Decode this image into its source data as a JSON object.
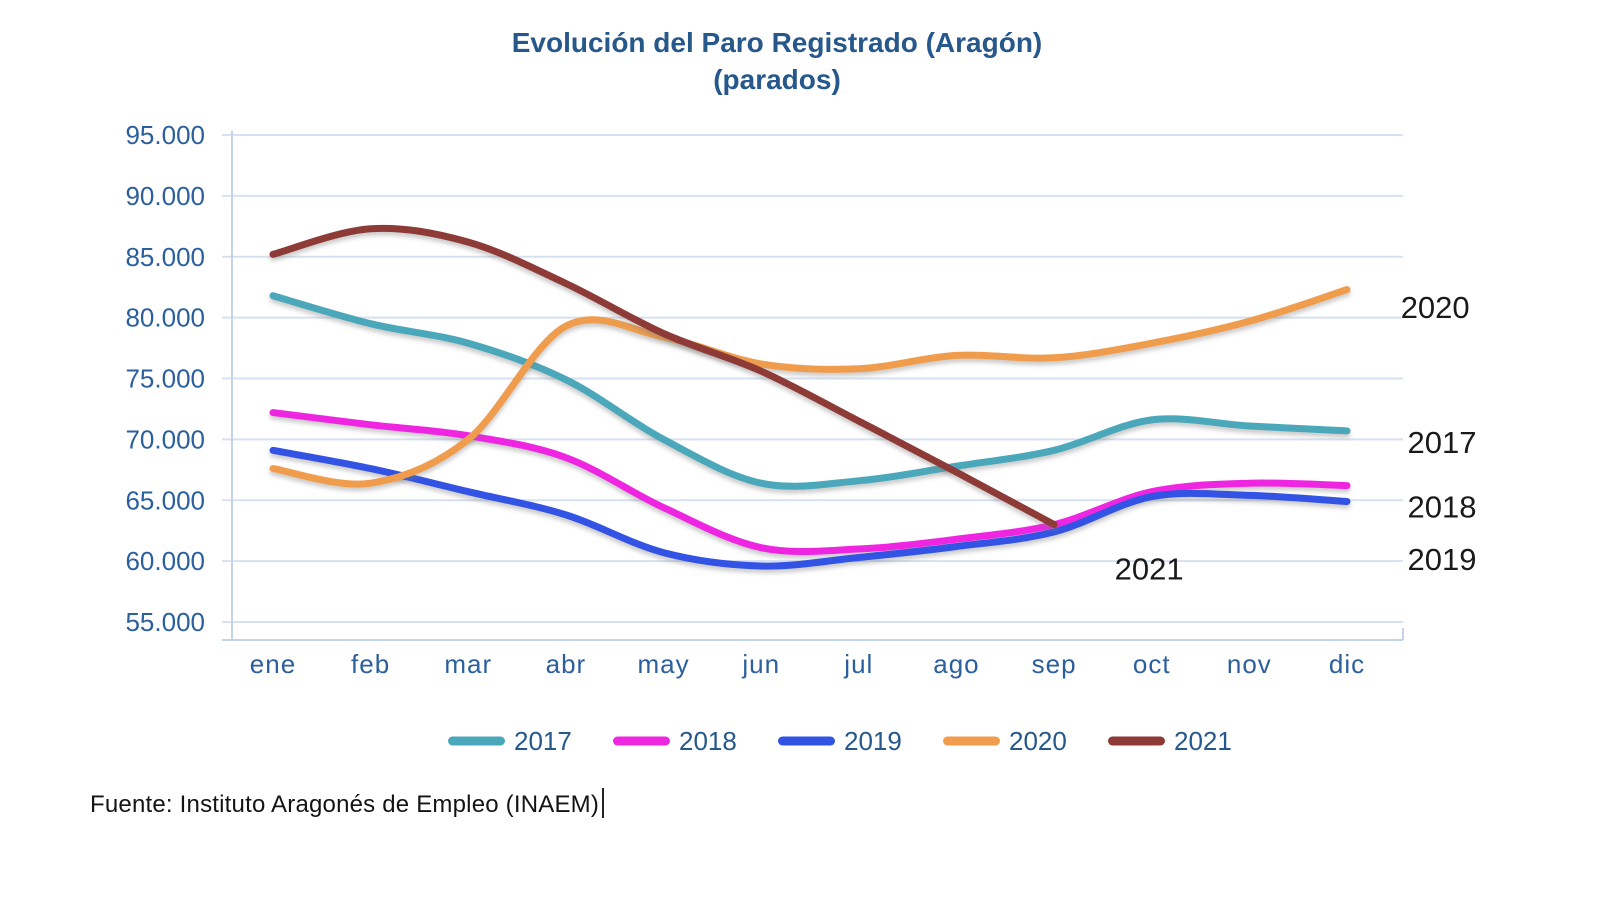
{
  "title": {
    "line1": "Evolución del Paro Registrado (Aragón)",
    "line2": "(parados)"
  },
  "source_text": "Fuente: Instituto Aragonés de Empleo (INAEM)",
  "colors": {
    "title_text": "#26588C",
    "axis_text": "#2B5F9E",
    "gridline": "#D7E1F1",
    "axis_line": "#C3D3E8",
    "annotation_text": "#1A1A1A",
    "legend_text": "#26588C"
  },
  "chart_data": {
    "type": "line",
    "title": "Evolución del Paro Registrado (Aragón) (parados)",
    "categories": [
      "ene",
      "feb",
      "mar",
      "abr",
      "may",
      "jun",
      "jul",
      "ago",
      "sep",
      "oct",
      "nov",
      "dic"
    ],
    "ylim": [
      55000,
      95000
    ],
    "y_tick_step": 5000,
    "y_tick_labels": [
      "95.000",
      "90.000",
      "85.000",
      "80.000",
      "75.000",
      "70.000",
      "65.000",
      "60.000",
      "55.000"
    ],
    "grid": true,
    "legend_position": "bottom",
    "series": [
      {
        "name": "2017",
        "color": "#4BA8BA",
        "values": [
          81800,
          79500,
          77900,
          74900,
          70000,
          66400,
          66600,
          67800,
          69100,
          71600,
          71100,
          70700
        ]
      },
      {
        "name": "2018",
        "color": "#EE28E1",
        "values": [
          72200,
          71200,
          70300,
          68500,
          64400,
          61100,
          61000,
          61800,
          63000,
          65700,
          66400,
          66200
        ]
      },
      {
        "name": "2019",
        "color": "#3353E4",
        "values": [
          69100,
          67600,
          65700,
          63800,
          60700,
          59600,
          60300,
          61200,
          62400,
          65300,
          65400,
          64900
        ]
      },
      {
        "name": "2020",
        "color": "#EF9D4D",
        "values": [
          67600,
          66400,
          70000,
          79300,
          78400,
          76200,
          75800,
          76900,
          76700,
          77900,
          79700,
          82300
        ]
      },
      {
        "name": "2021",
        "color": "#8E3B38",
        "values": [
          85200,
          87300,
          86200,
          82800,
          78700,
          75600,
          71500,
          67300,
          63000,
          null,
          null,
          null
        ]
      }
    ],
    "annotations": [
      {
        "text": "2020",
        "x_index": 11.55,
        "value": 80800
      },
      {
        "text": "2017",
        "x_index": 11.62,
        "value": 69700
      },
      {
        "text": "2018",
        "x_index": 11.62,
        "value": 64400
      },
      {
        "text": "2019",
        "x_index": 11.62,
        "value": 60100
      },
      {
        "text": "2021",
        "x_index": 8.62,
        "value": 59300
      }
    ]
  },
  "legend": {
    "items": [
      "2017",
      "2018",
      "2019",
      "2020",
      "2021"
    ]
  }
}
